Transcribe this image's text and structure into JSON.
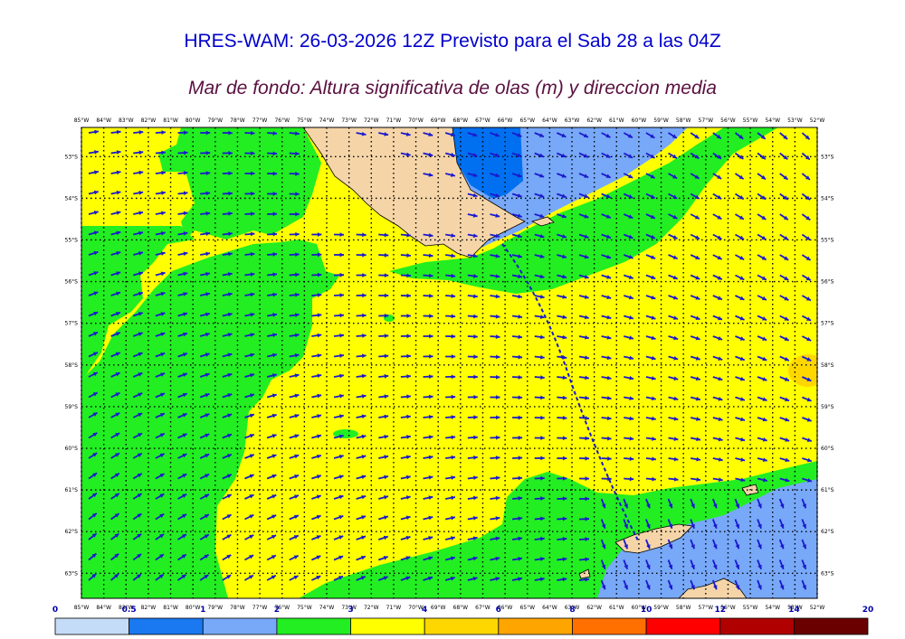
{
  "header": {
    "title": "HRES-WAM: 26-03-2026 12Z Previsto para el Sab 28 a las 04Z",
    "subtitle": "Mar de fondo: Altura significativa de olas (m) y direccion media"
  },
  "map": {
    "lon_labels": [
      "85°W",
      "84°W",
      "83°W",
      "82°W",
      "81°W",
      "80°W",
      "79°W",
      "78°W",
      "77°W",
      "76°W",
      "75°W",
      "74°W",
      "73°W",
      "72°W",
      "71°W",
      "70°W",
      "69°W",
      "68°W",
      "67°W",
      "66°W",
      "65°W",
      "64°W",
      "63°W",
      "62°W",
      "61°W",
      "60°W",
      "59°W",
      "58°W",
      "57°W",
      "56°W",
      "55°W",
      "54°W",
      "53°W",
      "52°W"
    ],
    "lat_labels": [
      "53°S",
      "54°S",
      "55°S",
      "56°S",
      "57°S",
      "58°S",
      "59°S",
      "60°S",
      "61°S",
      "62°S",
      "63°S"
    ],
    "lon_range": [
      -85,
      -52
    ],
    "lat_range": [
      -52.3,
      -63.6
    ],
    "colors": {
      "land": "#f5d5a8",
      "ocean_low": "#78a8f8",
      "ocean_verylow": "#0070f0",
      "green": "#22ee22",
      "yellow": "#ffff00",
      "orange": "#ffd700",
      "arrow": "#1a1acc",
      "grid": "#000000"
    }
  },
  "colorbar": {
    "labels": [
      "0",
      "0.5",
      "1",
      "2",
      "3",
      "4",
      "6",
      "8",
      "10",
      "12",
      "14",
      "20"
    ],
    "colors": [
      "#c4dcf8",
      "#1a78f0",
      "#78a8f8",
      "#22ee22",
      "#ffff00",
      "#ffd700",
      "#ffa500",
      "#ff7000",
      "#ff0000",
      "#b00000",
      "#6a0000",
      "#333333"
    ]
  }
}
